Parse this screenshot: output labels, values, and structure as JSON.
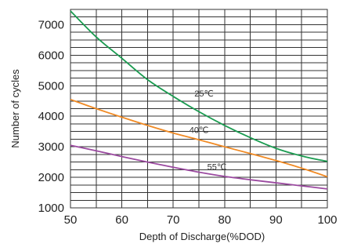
{
  "chart_data": {
    "type": "line",
    "title": "",
    "xlabel": "Depth of Discharge(%DOD)",
    "ylabel": "Number of cycles",
    "xlim": [
      50,
      100
    ],
    "ylim": [
      1000,
      7500
    ],
    "x_ticks": [
      "50",
      "60",
      "70",
      "80",
      "90",
      "100"
    ],
    "y_ticks": [
      "1000",
      "2000",
      "3000",
      "4000",
      "5000",
      "6000",
      "7000"
    ],
    "grid": true,
    "series": [
      {
        "name": "25℃",
        "color": "#1a9b50",
        "x": [
          50,
          55,
          60,
          65,
          70,
          75,
          80,
          85,
          90,
          95,
          100
        ],
        "y": [
          7450,
          6600,
          5900,
          5200,
          4650,
          4150,
          3700,
          3300,
          2950,
          2700,
          2520
        ]
      },
      {
        "name": "40℃",
        "color": "#f08a24",
        "x": [
          50,
          55,
          60,
          65,
          70,
          75,
          80,
          85,
          90,
          95,
          100
        ],
        "y": [
          4550,
          4250,
          3970,
          3700,
          3450,
          3230,
          3000,
          2780,
          2550,
          2300,
          2020
        ]
      },
      {
        "name": "55℃",
        "color": "#9b4aa0",
        "x": [
          50,
          55,
          60,
          65,
          70,
          75,
          80,
          85,
          90,
          95,
          100
        ],
        "y": [
          3050,
          2870,
          2680,
          2500,
          2330,
          2170,
          2030,
          1920,
          1820,
          1720,
          1620
        ]
      }
    ],
    "labels": [
      {
        "text": "25℃",
        "x": 76,
        "y": 4650
      },
      {
        "text": "40℃",
        "x": 75,
        "y": 3450
      },
      {
        "text": "55℃",
        "x": 78.5,
        "y": 2250
      }
    ]
  }
}
